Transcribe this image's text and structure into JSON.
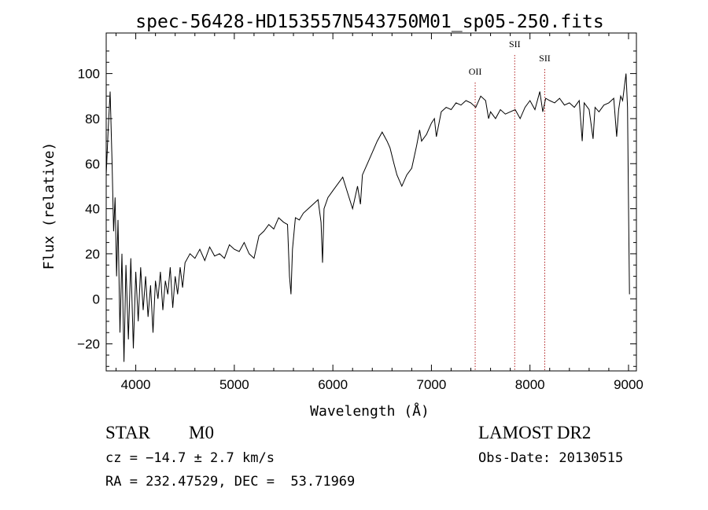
{
  "chart_data": {
    "type": "line",
    "title": "spec-56428-HD153557N543750M01_sp05-250.fits",
    "xlabel": "Wavelength (Å)",
    "ylabel": "Flux (relative)",
    "xlim": [
      3700,
      9080
    ],
    "ylim": [
      -32,
      118
    ],
    "xticks": [
      4000,
      5000,
      6000,
      7000,
      8000,
      9000
    ],
    "yticks": [
      -20,
      0,
      20,
      40,
      60,
      80,
      100
    ],
    "grid": false,
    "line_color": "#000000",
    "marker_color": "#b22222",
    "series": [
      {
        "x": [
          3700,
          3720,
          3740,
          3760,
          3775,
          3790,
          3805,
          3820,
          3840,
          3860,
          3880,
          3900,
          3925,
          3950,
          3975,
          4000,
          4025,
          4050,
          4075,
          4100,
          4125,
          4150,
          4175,
          4200,
          4225,
          4250,
          4275,
          4300,
          4325,
          4350,
          4375,
          4400,
          4425,
          4450,
          4475,
          4500,
          4550,
          4600,
          4650,
          4700,
          4750,
          4800,
          4850,
          4900,
          4950,
          5000,
          5050,
          5100,
          5150,
          5200,
          5230,
          5250,
          5300,
          5350,
          5400,
          5450,
          5500,
          5540,
          5560,
          5575,
          5590,
          5620,
          5660,
          5700,
          5750,
          5800,
          5850,
          5880,
          5895,
          5910,
          5950,
          6000,
          6050,
          6100,
          6150,
          6200,
          6250,
          6280,
          6300,
          6350,
          6400,
          6450,
          6500,
          6550,
          6580,
          6620,
          6650,
          6700,
          6750,
          6800,
          6850,
          6880,
          6900,
          6950,
          7000,
          7030,
          7050,
          7100,
          7150,
          7200,
          7250,
          7300,
          7350,
          7400,
          7450,
          7500,
          7550,
          7580,
          7600,
          7650,
          7700,
          7750,
          7800,
          7850,
          7900,
          7950,
          8000,
          8050,
          8100,
          8130,
          8160,
          8200,
          8250,
          8300,
          8350,
          8400,
          8450,
          8500,
          8530,
          8550,
          8600,
          8640,
          8660,
          8700,
          8750,
          8800,
          8850,
          8880,
          8900,
          8920,
          8940,
          8960,
          8975,
          8990,
          9000,
          9010
        ],
        "y": [
          55,
          75,
          92,
          60,
          30,
          45,
          10,
          35,
          -15,
          20,
          -28,
          15,
          -18,
          18,
          -22,
          12,
          -10,
          14,
          -5,
          10,
          -8,
          6,
          -15,
          8,
          0,
          12,
          -5,
          8,
          2,
          14,
          -4,
          10,
          2,
          14,
          5,
          16,
          20,
          18,
          22,
          17,
          23,
          19,
          20,
          18,
          24,
          22,
          21,
          25,
          20,
          18,
          24,
          28,
          30,
          33,
          31,
          36,
          34,
          33,
          10,
          2,
          22,
          36,
          35,
          38,
          40,
          42,
          44,
          34,
          16,
          40,
          45,
          48,
          51,
          54,
          47,
          40,
          50,
          42,
          55,
          60,
          65,
          70,
          74,
          70,
          67,
          60,
          55,
          50,
          55,
          58,
          68,
          75,
          70,
          73,
          78,
          80,
          72,
          83,
          85,
          84,
          87,
          86,
          88,
          87,
          85,
          90,
          88,
          80,
          83,
          80,
          84,
          82,
          83,
          84,
          80,
          85,
          88,
          84,
          92,
          83,
          89,
          88,
          87,
          89,
          86,
          87,
          85,
          88,
          70,
          87,
          84,
          71,
          85,
          83,
          86,
          87,
          89,
          72,
          84,
          90,
          88,
          95,
          100,
          85,
          40,
          2
        ]
      }
    ],
    "line_markers": [
      {
        "label": "OII",
        "x": 7444
      },
      {
        "label": "SII",
        "x": 7845
      },
      {
        "label": "SII",
        "x": 8150
      }
    ]
  },
  "info": {
    "object_type": "STAR",
    "subclass": "M0",
    "cz": "cz = −14.7 ± 2.7 km/s",
    "coords": "RA = 232.47529, DEC =  53.71969",
    "survey": "LAMOST DR2",
    "obs_date": "Obs-Date: 20130515"
  }
}
